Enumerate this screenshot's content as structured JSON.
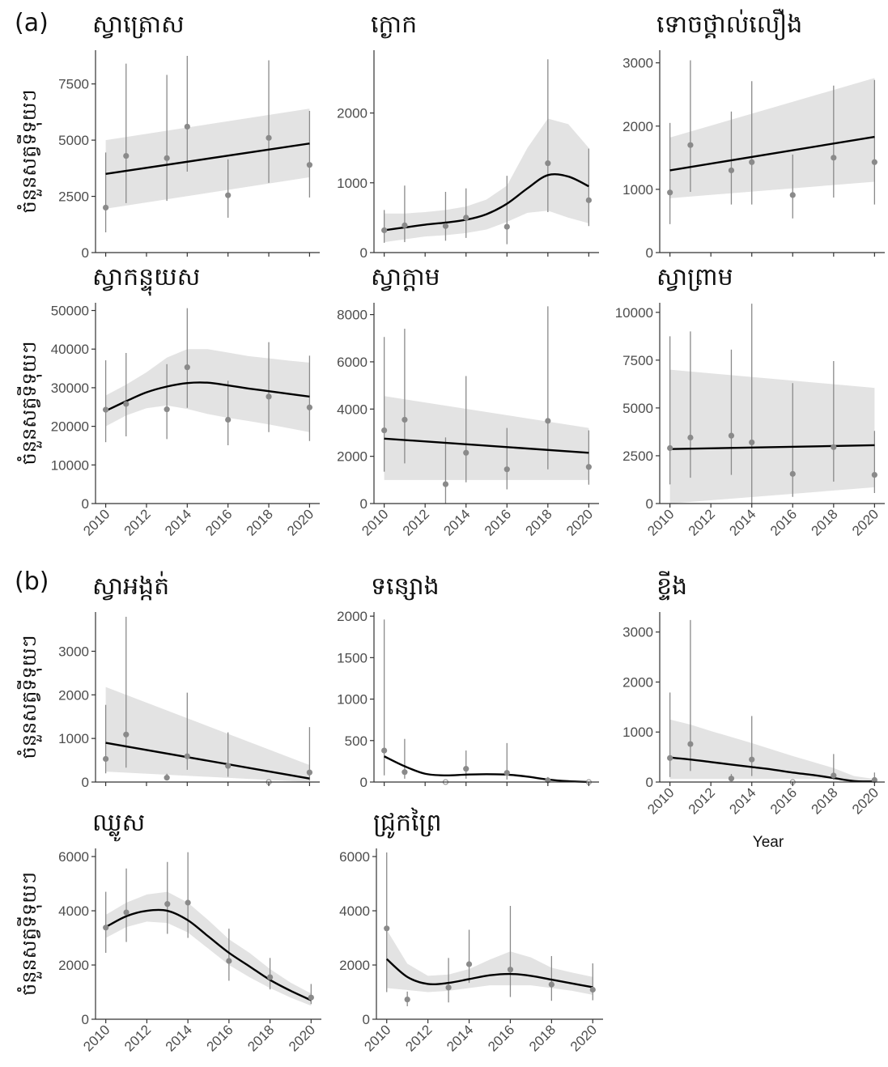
{
  "panel_labels": [
    "(a)",
    "(b)"
  ],
  "y_axis_label": "ចំនួនសត្វទីទុយៗ",
  "x_axis_label": "Year",
  "colors": {
    "ribbon": "#e3e3e3",
    "point": "#8a8a8a",
    "fit": "#000000",
    "axis": "#333333"
  },
  "chart_data": [
    {
      "type": "line",
      "title": "ស្វាត្រោស",
      "x": [
        2010,
        2011,
        2013,
        2014,
        2016,
        2018,
        2020
      ],
      "y": [
        2000,
        4300,
        4200,
        5600,
        2550,
        5100,
        3900
      ],
      "err_low": [
        900,
        2200,
        2300,
        3600,
        1550,
        3100,
        2450
      ],
      "err_high": [
        4450,
        8400,
        7900,
        8750,
        4150,
        8550,
        6300
      ],
      "fit_x": [
        2010,
        2020
      ],
      "fit": [
        3500,
        4850
      ],
      "ribbon_low": [
        1950,
        3350
      ],
      "ribbon_high": [
        5000,
        6400
      ],
      "xlim": [
        2009.5,
        2020.5
      ],
      "ylim": [
        0,
        9000
      ],
      "yticks": [
        0,
        2500,
        5000,
        7500
      ]
    },
    {
      "type": "line",
      "title": "ក្ងោក",
      "x": [
        2010,
        2011,
        2013,
        2014,
        2016,
        2018,
        2020
      ],
      "y": [
        320,
        390,
        380,
        500,
        370,
        1280,
        750
      ],
      "err_low": [
        140,
        150,
        170,
        210,
        120,
        580,
        380
      ],
      "err_high": [
        610,
        960,
        870,
        920,
        1100,
        2770,
        1490
      ],
      "fit_x": [
        2010,
        2011,
        2012,
        2013,
        2014,
        2015,
        2016,
        2017,
        2018,
        2019,
        2020
      ],
      "fit": [
        320,
        360,
        400,
        430,
        470,
        550,
        700,
        920,
        1110,
        1090,
        950
      ],
      "ribbon_low": [
        150,
        190,
        230,
        250,
        280,
        330,
        440,
        570,
        600,
        500,
        420
      ],
      "ribbon_high": [
        560,
        560,
        580,
        610,
        660,
        760,
        960,
        1500,
        1920,
        1840,
        1500
      ],
      "xlim": [
        2009.5,
        2020.5
      ],
      "ylim": [
        0,
        2900
      ],
      "yticks": [
        0,
        1000,
        2000
      ]
    },
    {
      "type": "line",
      "title": "ទោចថ្គាល់លឿង",
      "x": [
        2010,
        2011,
        2013,
        2014,
        2016,
        2018,
        2020
      ],
      "y": [
        950,
        1700,
        1300,
        1430,
        910,
        1500,
        1430
      ],
      "err_low": [
        450,
        960,
        760,
        760,
        540,
        870,
        760
      ],
      "err_high": [
        2050,
        3040,
        2230,
        2710,
        1550,
        2640,
        2730
      ],
      "fit_x": [
        2010,
        2020
      ],
      "fit": [
        1300,
        1830
      ],
      "ribbon_low": [
        860,
        1120
      ],
      "ribbon_high": [
        1820,
        2760
      ],
      "xlim": [
        2009.5,
        2020.5
      ],
      "ylim": [
        0,
        3200
      ],
      "yticks": [
        0,
        1000,
        2000,
        3000
      ]
    },
    {
      "type": "line",
      "title": "ស្វាកន្ទុយស",
      "x": [
        2010,
        2011,
        2013,
        2014,
        2016,
        2018,
        2020
      ],
      "y": [
        24300,
        25800,
        24400,
        35300,
        21700,
        27700,
        24900
      ],
      "err_low": [
        15900,
        17400,
        16700,
        24800,
        15100,
        18500,
        16200
      ],
      "err_high": [
        37100,
        39000,
        36100,
        50600,
        31800,
        41800,
        38300
      ],
      "fit_x": [
        2010,
        2011,
        2012,
        2013,
        2014,
        2015,
        2016,
        2017,
        2018,
        2019,
        2020
      ],
      "fit": [
        24000,
        26500,
        28800,
        30300,
        31200,
        31300,
        30600,
        29800,
        29100,
        28400,
        27700
      ],
      "ribbon_low": [
        20000,
        22800,
        24700,
        25400,
        24500,
        23200,
        22200,
        21400,
        20500,
        19500,
        18500
      ],
      "ribbon_high": [
        28000,
        30800,
        34000,
        37800,
        40000,
        40000,
        39100,
        38200,
        37600,
        37000,
        36500
      ],
      "xlim": [
        2009.5,
        2020.5
      ],
      "ylim": [
        0,
        52000
      ],
      "yticks": [
        0,
        10000,
        20000,
        30000,
        40000,
        50000
      ]
    },
    {
      "type": "line",
      "title": "ស្វាក្តាម",
      "x": [
        2010,
        2011,
        2013,
        2014,
        2016,
        2018,
        2020
      ],
      "y": [
        3100,
        3550,
        820,
        2150,
        1450,
        3500,
        1550
      ],
      "err_low": [
        1350,
        1700,
        0,
        900,
        600,
        1450,
        800
      ],
      "err_high": [
        7050,
        7400,
        2800,
        5400,
        3200,
        8350,
        3100
      ],
      "fit_x": [
        2010,
        2020
      ],
      "fit": [
        2750,
        2150
      ],
      "ribbon_low": [
        1000,
        1000
      ],
      "ribbon_high": [
        4550,
        3200
      ],
      "xlim": [
        2009.5,
        2020.5
      ],
      "ylim": [
        0,
        8500
      ],
      "yticks": [
        0,
        2000,
        4000,
        6000,
        8000
      ]
    },
    {
      "type": "line",
      "title": "ស្វាព្រាម",
      "x": [
        2010,
        2011,
        2013,
        2014,
        2016,
        2018,
        2020
      ],
      "y": [
        2900,
        3450,
        3550,
        3200,
        1550,
        2950,
        1500
      ],
      "err_low": [
        1000,
        1350,
        1500,
        0,
        350,
        1150,
        550
      ],
      "err_high": [
        8750,
        9000,
        8050,
        10450,
        6300,
        7450,
        3800
      ],
      "fit_x": [
        2010,
        2020
      ],
      "fit": [
        2850,
        3050
      ],
      "ribbon_low": [
        0,
        850
      ],
      "ribbon_high": [
        7000,
        6050
      ],
      "xlim": [
        2009.5,
        2020.5
      ],
      "ylim": [
        0,
        10500
      ],
      "yticks": [
        0,
        2500,
        5000,
        7500,
        10000
      ]
    },
    {
      "type": "line",
      "title": "ស្វាអង្កត់",
      "x": [
        2010,
        2011,
        2013,
        2014,
        2016,
        2018,
        2020
      ],
      "y": [
        530,
        1090,
        100,
        590,
        370,
        0,
        220
      ],
      "err_low": [
        200,
        330,
        40,
        280,
        120,
        0,
        30
      ],
      "err_high": [
        1770,
        3790,
        190,
        2050,
        1140,
        0,
        1260
      ],
      "fit_x": [
        2010,
        2020
      ],
      "fit": [
        900,
        80
      ],
      "ribbon_low": [
        240,
        0
      ],
      "ribbon_high": [
        2180,
        390
      ],
      "xlim": [
        2009.5,
        2020.5
      ],
      "ylim": [
        0,
        3900
      ],
      "yticks": [
        0,
        1000,
        2000,
        3000
      ]
    },
    {
      "type": "line",
      "title": "ទន្សោង",
      "x": [
        2010,
        2011,
        2013,
        2014,
        2016,
        2018,
        2020
      ],
      "y": [
        380,
        120,
        0,
        160,
        110,
        20,
        0
      ],
      "err_low": [
        80,
        40,
        0,
        40,
        30,
        10,
        0
      ],
      "err_high": [
        1960,
        520,
        0,
        380,
        470,
        60,
        0
      ],
      "fit_x": [
        2010,
        2011,
        2012,
        2013,
        2014,
        2015,
        2016,
        2017,
        2018,
        2019,
        2020
      ],
      "fit": [
        310,
        190,
        100,
        80,
        90,
        95,
        90,
        65,
        30,
        10,
        0
      ],
      "ribbon_low": [
        0,
        0,
        0,
        0,
        0,
        0,
        0,
        0,
        0,
        0,
        0
      ],
      "ribbon_high": [
        0,
        0,
        0,
        0,
        0,
        0,
        0,
        0,
        0,
        0,
        0
      ],
      "xlim": [
        2009.5,
        2020.5
      ],
      "ylim": [
        0,
        2050
      ],
      "yticks": [
        0,
        500,
        1000,
        1500,
        2000
      ]
    },
    {
      "type": "line",
      "title": "ខ្ទីង",
      "x": [
        2010,
        2011,
        2013,
        2014,
        2016,
        2018,
        2020
      ],
      "y": [
        480,
        760,
        70,
        450,
        0,
        130,
        40
      ],
      "err_low": [
        100,
        220,
        40,
        120,
        0,
        50,
        10
      ],
      "err_high": [
        1790,
        3240,
        160,
        1320,
        0,
        560,
        190
      ],
      "fit_x": [
        2010,
        2011,
        2012,
        2013,
        2014,
        2015,
        2016,
        2017,
        2018,
        2019,
        2020
      ],
      "fit": [
        490,
        450,
        400,
        350,
        300,
        250,
        190,
        140,
        80,
        20,
        10
      ],
      "ribbon_low": [
        60,
        60,
        60,
        60,
        60,
        60,
        60,
        60,
        60,
        0,
        0
      ],
      "ribbon_high": [
        1250,
        1150,
        1020,
        900,
        780,
        650,
        520,
        400,
        280,
        120,
        60
      ],
      "xlim": [
        2009.5,
        2020.5
      ],
      "ylim": [
        0,
        3400
      ],
      "yticks": [
        0,
        1000,
        2000,
        3000
      ]
    },
    {
      "type": "line",
      "title": "ឈ្លូស",
      "x": [
        2010,
        2011,
        2013,
        2014,
        2016,
        2018,
        2020
      ],
      "y": [
        3380,
        3940,
        4250,
        4300,
        2150,
        1550,
        800
      ],
      "err_low": [
        2450,
        2850,
        3150,
        3000,
        1420,
        1100,
        560
      ],
      "err_high": [
        4700,
        5560,
        5800,
        6160,
        3340,
        2260,
        1300
      ],
      "fit_x": [
        2010,
        2011,
        2012,
        2013,
        2014,
        2015,
        2016,
        2017,
        2018,
        2019,
        2020
      ],
      "fit": [
        3400,
        3800,
        4000,
        4000,
        3650,
        3050,
        2450,
        1950,
        1450,
        1050,
        700
      ],
      "ribbon_low": [
        3000,
        3400,
        3600,
        3550,
        3200,
        2600,
        2000,
        1550,
        1150,
        800,
        500
      ],
      "ribbon_high": [
        3850,
        4300,
        4600,
        4700,
        4300,
        3650,
        2950,
        2450,
        1850,
        1350,
        950
      ],
      "xlim": [
        2009.5,
        2020.5
      ],
      "ylim": [
        0,
        6300
      ],
      "yticks": [
        0,
        2000,
        4000,
        6000
      ]
    },
    {
      "type": "line",
      "title": "ជ្រូកព្រៃ",
      "x": [
        2010,
        2011,
        2013,
        2014,
        2016,
        2018,
        2020
      ],
      "y": [
        3350,
        730,
        1170,
        2030,
        1830,
        1280,
        1090
      ],
      "err_low": [
        1000,
        480,
        620,
        1340,
        820,
        680,
        700
      ],
      "err_high": [
        6150,
        1020,
        2260,
        3300,
        4180,
        2330,
        2060
      ],
      "fit_x": [
        2010,
        2011,
        2012,
        2013,
        2014,
        2015,
        2016,
        2017,
        2018,
        2019,
        2020
      ],
      "fit": [
        2220,
        1560,
        1300,
        1340,
        1480,
        1620,
        1670,
        1600,
        1460,
        1320,
        1180
      ],
      "ribbon_low": [
        1150,
        1080,
        1000,
        1050,
        1150,
        1250,
        1250,
        1250,
        1150,
        1050,
        900
      ],
      "ribbon_high": [
        3300,
        2050,
        1600,
        1650,
        1850,
        2200,
        2500,
        2280,
        1900,
        1720,
        1560
      ],
      "xlim": [
        2009.5,
        2020.5
      ],
      "ylim": [
        0,
        6300
      ],
      "yticks": [
        0,
        2000,
        4000,
        6000
      ]
    }
  ]
}
